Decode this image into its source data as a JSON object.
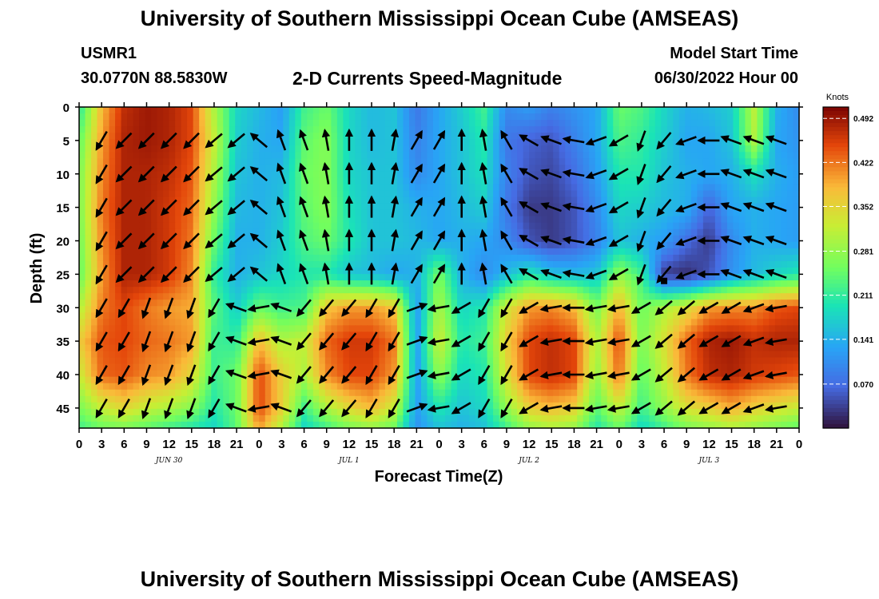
{
  "header": {
    "title": "University of Southern Mississippi Ocean Cube (AMSEAS)",
    "station": "USMR1",
    "coords": "30.0770N  88.5830W",
    "product": "2-D Currents Speed-Magnitude",
    "start_label": "Model Start Time",
    "start_value": "06/30/2022 Hour 00"
  },
  "footer": {
    "title": "University of Southern Mississippi Ocean Cube (AMSEAS)"
  },
  "chart_data": {
    "type": "heatmap",
    "xlabel": "Forecast Time(Z)",
    "ylabel": "Depth (ft)",
    "x_ticks": [
      "0",
      "3",
      "6",
      "9",
      "12",
      "15",
      "18",
      "21",
      "0",
      "3",
      "6",
      "9",
      "12",
      "15",
      "18",
      "21",
      "0",
      "3",
      "6",
      "9",
      "12",
      "15",
      "18",
      "21",
      "0",
      "3",
      "6",
      "9",
      "12",
      "15",
      "18",
      "21",
      "0"
    ],
    "date_labels": [
      {
        "label": "JUN 30",
        "hour": 12
      },
      {
        "label": "JUL 1",
        "hour": 36
      },
      {
        "label": "JUL 2",
        "hour": 60
      },
      {
        "label": "JUL 3",
        "hour": 84
      }
    ],
    "xlim": [
      0,
      96
    ],
    "y_ticks": [
      0,
      5,
      10,
      15,
      20,
      25,
      30,
      35,
      40,
      45
    ],
    "ylim": [
      0,
      48
    ],
    "colorbar": {
      "unit": "Knots",
      "ticks": [
        "0.492",
        "0.422",
        "0.352",
        "0.281",
        "0.211",
        "0.141",
        "0.070"
      ],
      "range": [
        0.0,
        0.51
      ]
    },
    "hours": [
      0,
      3,
      6,
      9,
      12,
      15,
      18,
      21,
      24,
      27,
      30,
      33,
      36,
      39,
      42,
      45,
      48,
      51,
      54,
      57,
      60,
      63,
      66,
      69,
      72,
      75,
      78,
      81,
      84,
      87,
      90,
      93,
      96
    ],
    "depths": [
      0,
      5,
      10,
      15,
      20,
      25,
      30,
      35,
      40,
      45,
      48
    ],
    "speed_knots": [
      [
        0.2,
        0.38,
        0.47,
        0.49,
        0.48,
        0.45,
        0.3,
        0.18,
        0.15,
        0.12,
        0.22,
        0.25,
        0.18,
        0.15,
        0.16,
        0.08,
        0.13,
        0.17,
        0.22,
        0.1,
        0.12,
        0.09,
        0.11,
        0.13,
        0.25,
        0.23,
        0.18,
        0.14,
        0.15,
        0.17,
        0.31,
        0.14,
        0.1
      ],
      [
        0.24,
        0.4,
        0.48,
        0.49,
        0.48,
        0.45,
        0.32,
        0.17,
        0.14,
        0.13,
        0.24,
        0.27,
        0.18,
        0.15,
        0.16,
        0.09,
        0.13,
        0.16,
        0.2,
        0.08,
        0.06,
        0.05,
        0.09,
        0.13,
        0.23,
        0.21,
        0.17,
        0.13,
        0.13,
        0.16,
        0.3,
        0.13,
        0.11
      ],
      [
        0.26,
        0.41,
        0.48,
        0.48,
        0.47,
        0.44,
        0.3,
        0.16,
        0.14,
        0.15,
        0.25,
        0.27,
        0.18,
        0.16,
        0.16,
        0.1,
        0.13,
        0.16,
        0.19,
        0.09,
        0.05,
        0.04,
        0.07,
        0.12,
        0.2,
        0.2,
        0.16,
        0.14,
        0.13,
        0.14,
        0.19,
        0.14,
        0.12
      ],
      [
        0.26,
        0.42,
        0.48,
        0.48,
        0.46,
        0.43,
        0.28,
        0.15,
        0.14,
        0.16,
        0.24,
        0.27,
        0.19,
        0.16,
        0.16,
        0.14,
        0.13,
        0.15,
        0.17,
        0.08,
        0.03,
        0.03,
        0.05,
        0.1,
        0.18,
        0.17,
        0.15,
        0.14,
        0.06,
        0.13,
        0.14,
        0.13,
        0.12
      ],
      [
        0.25,
        0.41,
        0.48,
        0.48,
        0.46,
        0.42,
        0.25,
        0.14,
        0.14,
        0.17,
        0.23,
        0.25,
        0.2,
        0.16,
        0.16,
        0.15,
        0.13,
        0.14,
        0.13,
        0.1,
        0.05,
        0.03,
        0.05,
        0.09,
        0.16,
        0.14,
        0.12,
        0.07,
        0.03,
        0.1,
        0.14,
        0.13,
        0.12
      ],
      [
        0.24,
        0.4,
        0.48,
        0.48,
        0.46,
        0.41,
        0.21,
        0.14,
        0.16,
        0.18,
        0.2,
        0.2,
        0.16,
        0.15,
        0.13,
        0.14,
        0.26,
        0.14,
        0.1,
        0.15,
        0.2,
        0.16,
        0.15,
        0.16,
        0.28,
        0.22,
        0.03,
        0.02,
        0.05,
        0.11,
        0.15,
        0.18,
        0.2
      ],
      [
        0.3,
        0.42,
        0.45,
        0.42,
        0.4,
        0.39,
        0.24,
        0.17,
        0.25,
        0.22,
        0.23,
        0.37,
        0.4,
        0.4,
        0.37,
        0.12,
        0.3,
        0.18,
        0.2,
        0.33,
        0.4,
        0.41,
        0.38,
        0.26,
        0.39,
        0.25,
        0.3,
        0.34,
        0.4,
        0.41,
        0.41,
        0.44,
        0.45
      ],
      [
        0.36,
        0.44,
        0.45,
        0.43,
        0.42,
        0.4,
        0.22,
        0.21,
        0.38,
        0.3,
        0.32,
        0.43,
        0.46,
        0.46,
        0.42,
        0.12,
        0.33,
        0.2,
        0.22,
        0.36,
        0.45,
        0.47,
        0.45,
        0.3,
        0.45,
        0.26,
        0.34,
        0.43,
        0.48,
        0.49,
        0.47,
        0.48,
        0.48
      ],
      [
        0.32,
        0.43,
        0.44,
        0.41,
        0.4,
        0.35,
        0.22,
        0.25,
        0.45,
        0.36,
        0.3,
        0.41,
        0.45,
        0.45,
        0.4,
        0.12,
        0.28,
        0.18,
        0.2,
        0.34,
        0.45,
        0.47,
        0.45,
        0.28,
        0.43,
        0.24,
        0.32,
        0.42,
        0.47,
        0.48,
        0.46,
        0.45,
        0.44
      ],
      [
        0.26,
        0.32,
        0.35,
        0.32,
        0.3,
        0.27,
        0.2,
        0.25,
        0.45,
        0.36,
        0.22,
        0.3,
        0.35,
        0.38,
        0.32,
        0.12,
        0.2,
        0.16,
        0.18,
        0.28,
        0.36,
        0.38,
        0.36,
        0.24,
        0.32,
        0.22,
        0.28,
        0.34,
        0.36,
        0.39,
        0.36,
        0.34,
        0.32
      ],
      [
        0.22,
        0.25,
        0.26,
        0.24,
        0.22,
        0.2,
        0.18,
        0.24,
        0.4,
        0.3,
        0.18,
        0.22,
        0.26,
        0.28,
        0.25,
        0.11,
        0.16,
        0.14,
        0.16,
        0.22,
        0.28,
        0.3,
        0.28,
        0.2,
        0.25,
        0.18,
        0.22,
        0.26,
        0.28,
        0.3,
        0.28,
        0.26,
        0.24
      ]
    ],
    "direction_deg": [
      [
        120,
        120,
        135,
        135,
        135,
        135,
        140,
        140,
        220,
        250,
        250,
        260,
        270,
        270,
        280,
        300,
        300,
        270,
        260,
        240,
        210,
        200,
        190,
        160,
        150,
        110,
        130,
        160,
        180,
        200,
        200,
        200,
        200
      ],
      [
        120,
        120,
        135,
        135,
        135,
        135,
        140,
        140,
        220,
        250,
        250,
        260,
        270,
        270,
        280,
        300,
        300,
        270,
        260,
        240,
        210,
        200,
        190,
        160,
        150,
        110,
        130,
        160,
        180,
        200,
        200,
        200,
        200
      ],
      [
        120,
        120,
        135,
        135,
        135,
        135,
        140,
        140,
        220,
        250,
        250,
        260,
        270,
        270,
        280,
        300,
        300,
        270,
        260,
        240,
        210,
        200,
        190,
        160,
        150,
        110,
        130,
        160,
        180,
        200,
        200,
        200,
        200
      ],
      [
        120,
        120,
        135,
        135,
        135,
        135,
        140,
        140,
        220,
        250,
        250,
        260,
        270,
        270,
        280,
        300,
        300,
        270,
        260,
        240,
        210,
        200,
        190,
        160,
        150,
        110,
        130,
        160,
        180,
        200,
        200,
        200,
        200
      ],
      [
        120,
        120,
        135,
        135,
        135,
        135,
        140,
        140,
        220,
        250,
        250,
        260,
        270,
        270,
        280,
        300,
        300,
        270,
        260,
        240,
        210,
        200,
        190,
        160,
        150,
        110,
        130,
        160,
        180,
        200,
        200,
        200,
        200
      ],
      [
        120,
        120,
        135,
        135,
        135,
        135,
        140,
        140,
        220,
        250,
        250,
        260,
        270,
        270,
        280,
        300,
        300,
        270,
        260,
        240,
        210,
        200,
        190,
        160,
        150,
        110,
        130,
        160,
        180,
        200,
        200,
        200,
        200
      ],
      [
        120,
        120,
        120,
        110,
        110,
        110,
        120,
        200,
        170,
        200,
        130,
        130,
        130,
        120,
        120,
        340,
        170,
        150,
        120,
        120,
        150,
        170,
        180,
        170,
        170,
        150,
        140,
        140,
        150,
        150,
        160,
        170,
        170
      ],
      [
        120,
        120,
        120,
        110,
        110,
        110,
        120,
        200,
        170,
        200,
        130,
        130,
        130,
        120,
        120,
        340,
        170,
        150,
        120,
        120,
        150,
        170,
        180,
        170,
        170,
        150,
        140,
        140,
        150,
        150,
        160,
        170,
        170
      ],
      [
        120,
        120,
        120,
        110,
        110,
        110,
        120,
        200,
        170,
        200,
        130,
        130,
        130,
        120,
        120,
        340,
        170,
        150,
        120,
        120,
        150,
        170,
        180,
        170,
        170,
        150,
        140,
        140,
        150,
        150,
        160,
        170,
        170
      ],
      [
        120,
        120,
        120,
        110,
        110,
        110,
        120,
        200,
        170,
        200,
        130,
        130,
        130,
        120,
        120,
        340,
        170,
        150,
        120,
        120,
        150,
        170,
        180,
        170,
        170,
        150,
        140,
        140,
        150,
        150,
        160,
        170,
        170
      ],
      [
        120,
        120,
        120,
        110,
        110,
        110,
        120,
        200,
        170,
        200,
        130,
        130,
        130,
        120,
        120,
        340,
        170,
        150,
        120,
        120,
        150,
        170,
        180,
        170,
        170,
        150,
        140,
        140,
        150,
        150,
        160,
        170,
        170
      ]
    ],
    "marker": {
      "hour": 78,
      "depth": 26
    }
  }
}
